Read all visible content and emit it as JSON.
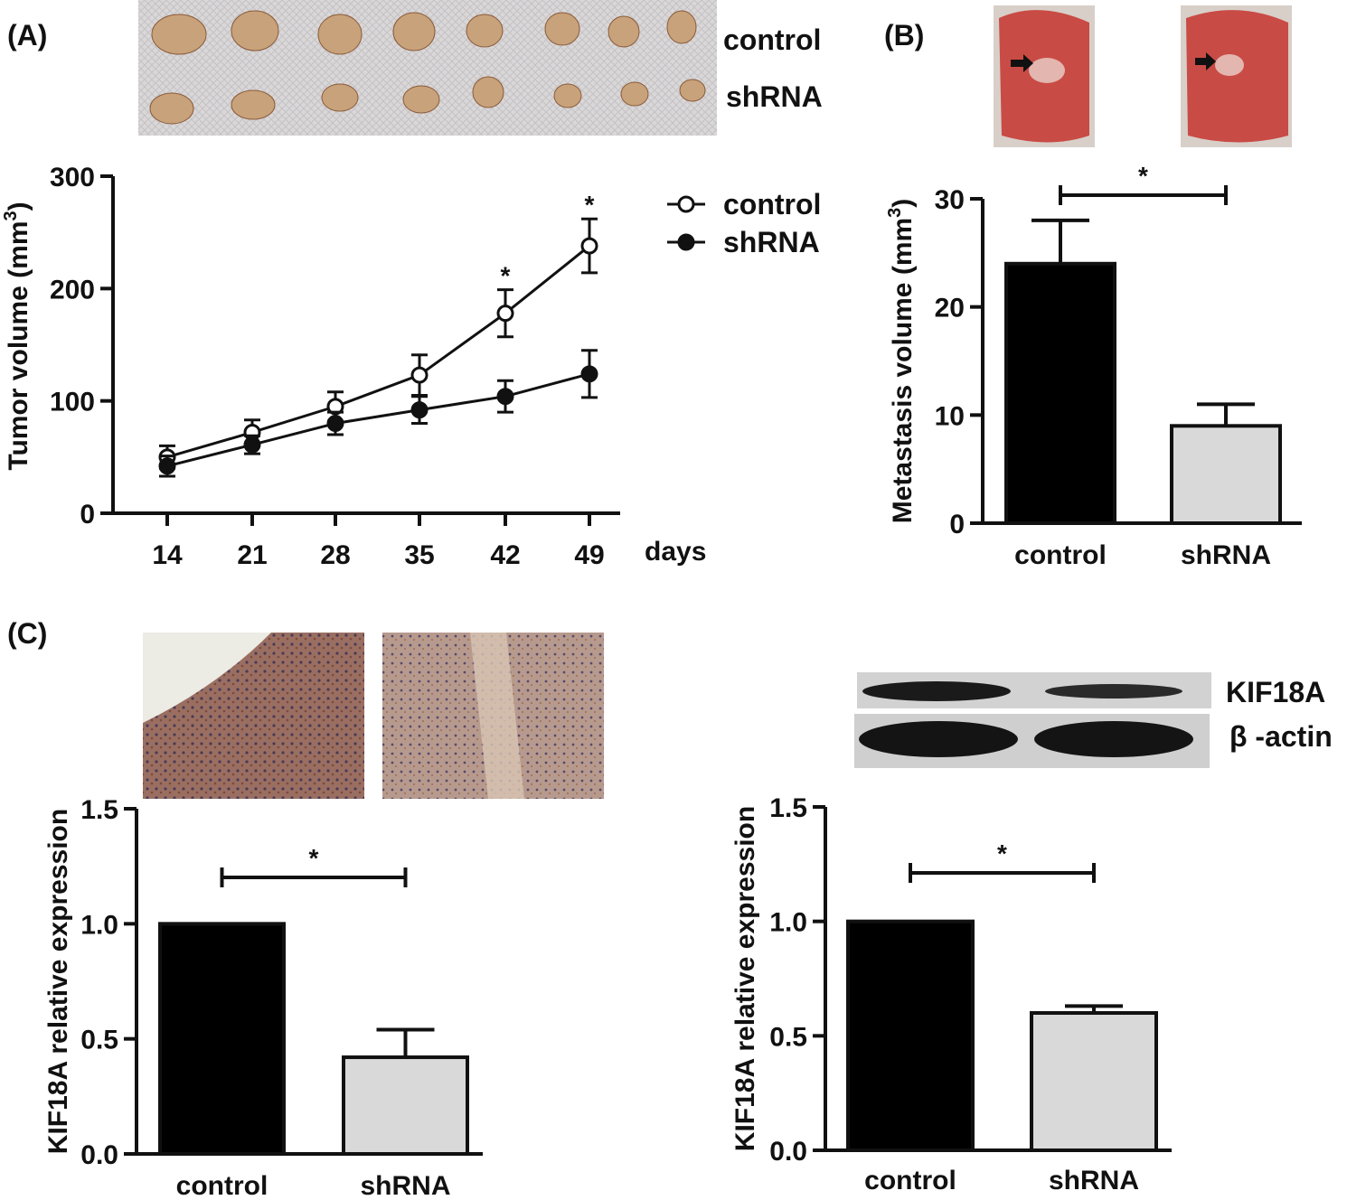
{
  "panels": {
    "a": "(A)",
    "b": "(B)",
    "c": "(C)"
  },
  "photo_labels": {
    "top_control": "control",
    "top_shrna": "shRNA",
    "blot_kif": "KIF18A",
    "blot_actin": "β -actin"
  },
  "colors": {
    "control_bar": "#000000",
    "shrna_bar": "#d9d9d9",
    "line": "#111111",
    "tissue": "#c94b45",
    "blot": "#1a1a1a"
  },
  "chart_data": [
    {
      "type": "line",
      "title": "",
      "xlabel": "days",
      "ylabel": "Tumor volume (mm3)",
      "x": [
        14,
        21,
        28,
        35,
        42,
        49
      ],
      "ylim": [
        0,
        300
      ],
      "yticks": [
        0,
        100,
        200,
        300
      ],
      "series": [
        {
          "name": "control",
          "marker": "open-circle",
          "values": [
            50,
            72,
            95,
            123,
            178,
            238
          ],
          "errors": [
            10,
            11,
            13,
            18,
            21,
            24
          ]
        },
        {
          "name": "shRNA",
          "marker": "filled-circle",
          "values": [
            42,
            61,
            80,
            92,
            104,
            124
          ],
          "errors": [
            9,
            8,
            10,
            12,
            14,
            21
          ]
        }
      ],
      "significance": [
        {
          "x": 42,
          "label": "*"
        },
        {
          "x": 49,
          "label": "*"
        }
      ]
    },
    {
      "type": "bar",
      "categories": [
        "control",
        "shRNA"
      ],
      "values": [
        24,
        9
      ],
      "errors": [
        4,
        2
      ],
      "ylabel": "Metastasis volume (mm3)",
      "ylim": [
        0,
        30
      ],
      "yticks": [
        0,
        10,
        20,
        30
      ],
      "significance": {
        "label": "*"
      }
    },
    {
      "type": "bar",
      "categories": [
        "control",
        "shRNA"
      ],
      "values": [
        1.0,
        0.42
      ],
      "errors": [
        0,
        0.12
      ],
      "ylabel": "KIF18A relative expression",
      "ylim": [
        0,
        1.5
      ],
      "yticks": [
        "0.0",
        "0.5",
        "1.0",
        "1.5"
      ],
      "significance": {
        "label": "*"
      }
    },
    {
      "type": "bar",
      "categories": [
        "control",
        "shRNA"
      ],
      "values": [
        1.0,
        0.6
      ],
      "errors": [
        0,
        0.03
      ],
      "ylabel": "KIF18A relative expression",
      "ylim": [
        0,
        1.5
      ],
      "yticks": [
        "0.0",
        "0.5",
        "1.0",
        "1.5"
      ],
      "significance": {
        "label": "*"
      }
    }
  ]
}
